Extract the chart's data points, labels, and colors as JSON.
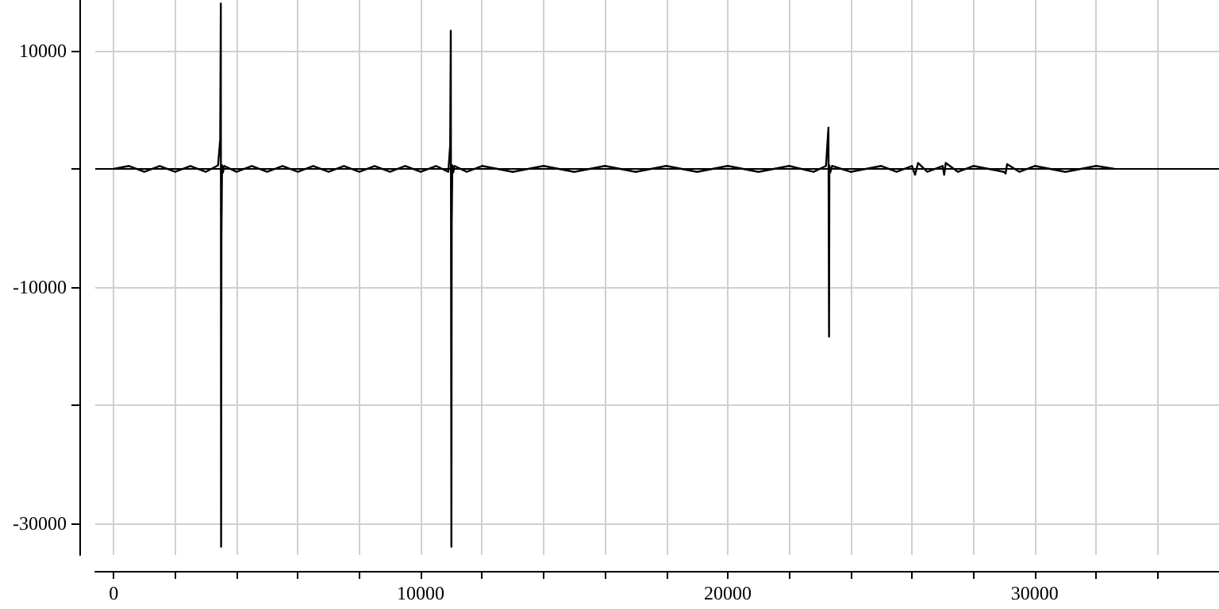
{
  "chart_data": {
    "type": "line",
    "x": [
      0,
      500,
      1000,
      1500,
      2000,
      2500,
      3000,
      3400,
      3470,
      3490,
      3500,
      3510,
      3530,
      3560,
      3600,
      4000,
      4500,
      5000,
      5500,
      6000,
      6500,
      7000,
      7500,
      8000,
      8500,
      9000,
      9500,
      10000,
      10500,
      10900,
      10960,
      10980,
      11000,
      11010,
      11030,
      11060,
      11100,
      11500,
      12000,
      13000,
      14000,
      15000,
      16000,
      17000,
      18000,
      19000,
      20000,
      21000,
      22000,
      22800,
      23200,
      23280,
      23300,
      23310,
      23340,
      23400,
      24000,
      25000,
      25500,
      26000,
      26100,
      26200,
      26500,
      27000,
      27050,
      27100,
      27500,
      28000,
      29000,
      29050,
      29100,
      29500,
      30000,
      31000,
      32000,
      32600
    ],
    "values": [
      0,
      250,
      -250,
      250,
      -250,
      250,
      -250,
      300,
      2500,
      14000,
      -32000,
      -5800,
      300,
      -300,
      250,
      -250,
      250,
      -250,
      250,
      -250,
      250,
      -250,
      250,
      -250,
      250,
      -250,
      250,
      -250,
      250,
      -250,
      2000,
      11700,
      -32000,
      -4700,
      300,
      -300,
      250,
      -250,
      250,
      -250,
      250,
      -250,
      250,
      -250,
      250,
      -250,
      250,
      -250,
      250,
      -250,
      250,
      3500,
      -14200,
      300,
      -300,
      250,
      -250,
      250,
      -250,
      250,
      -500,
      500,
      -250,
      250,
      -500,
      500,
      -250,
      250,
      -250,
      -400,
      400,
      -250,
      250,
      -250,
      250,
      0
    ],
    "color": "#000000",
    "line_style": "solid",
    "marker": "none",
    "xlim": [
      -600,
      36000
    ],
    "xticks": [
      0,
      {
        "value": 2000,
        "label": null
      },
      {
        "value": 4000,
        "label": null
      },
      {
        "value": 6000,
        "label": null
      },
      {
        "value": 8000,
        "label": null
      },
      10000,
      {
        "value": 12000,
        "label": null
      },
      {
        "value": 14000,
        "label": null
      },
      {
        "value": 16000,
        "label": null
      },
      {
        "value": 18000,
        "label": null
      },
      20000,
      {
        "value": 22000,
        "label": null
      },
      {
        "value": 24000,
        "label": null
      },
      {
        "value": 26000,
        "label": null
      },
      {
        "value": 28000,
        "label": null
      },
      30000,
      {
        "value": 32000,
        "label": null
      },
      {
        "value": 34000,
        "label": null
      }
    ],
    "ylim": [
      -32700,
      14300
    ],
    "yticks": [
      -30000,
      {
        "value": -20000,
        "label": null
      },
      -10000,
      {
        "value": 0,
        "label": null
      },
      10000
    ],
    "ref_lines": [
      {
        "axis": "y",
        "value": 0,
        "color": "#000000"
      }
    ],
    "grid": true
  }
}
